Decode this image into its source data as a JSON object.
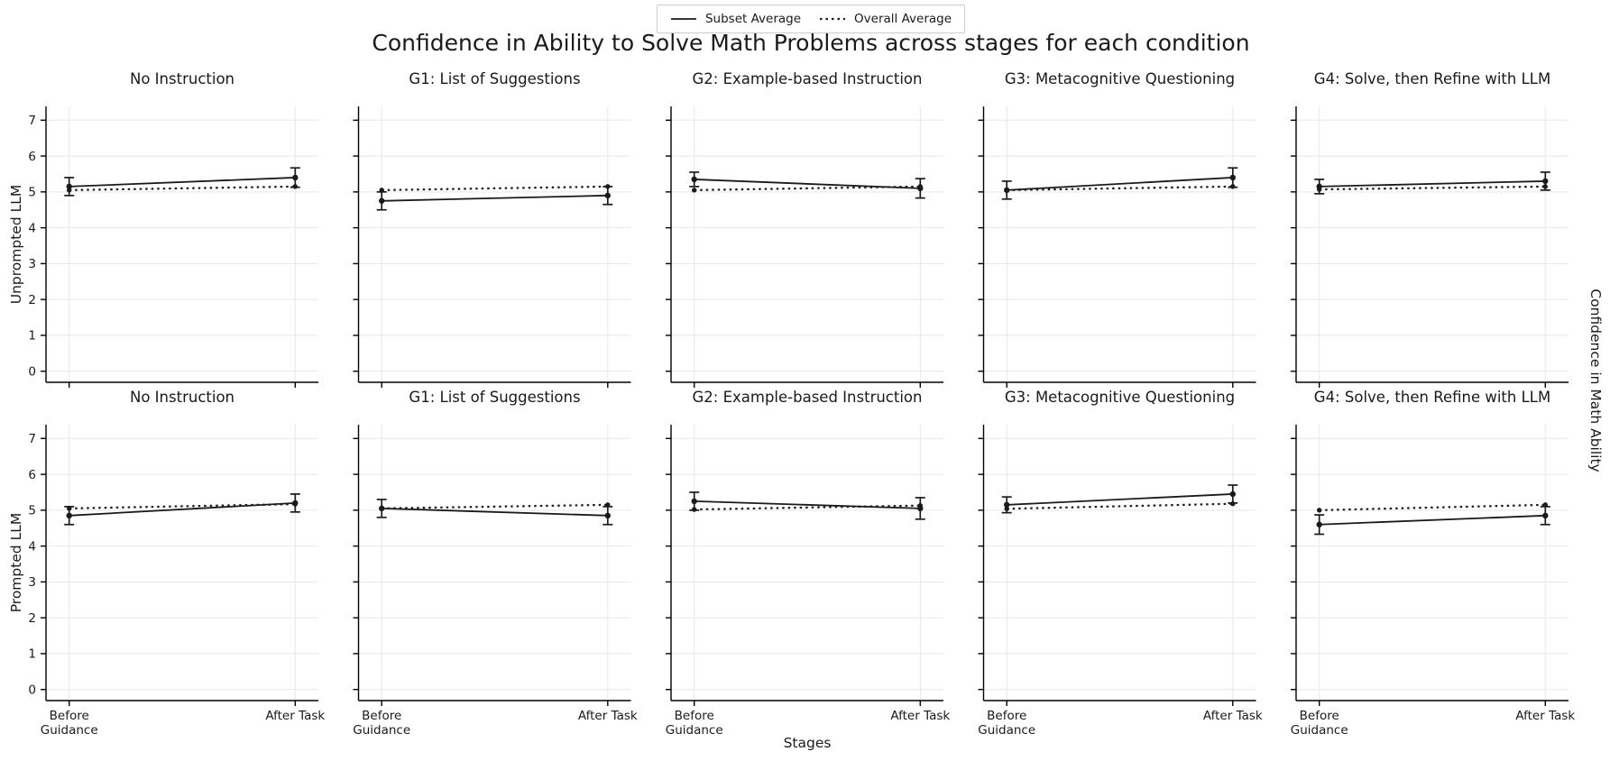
{
  "colors": {
    "line": "#1a1a1a",
    "grid": "#e7e7e7",
    "spine": "#000000",
    "legend_border": "#cccccc",
    "background": "#ffffff"
  },
  "chart_data": {
    "type": "line",
    "title": "Confidence in Ability to Solve Math Problems across stages for each condition",
    "xlabel": "Stages",
    "right_ylabel": "Confidence in Math Ability",
    "x_categories": [
      "Before\nGuidance",
      "After Task"
    ],
    "yticks": [
      0,
      1,
      2,
      3,
      4,
      5,
      6,
      7
    ],
    "ylim": [
      -0.33,
      7.38
    ],
    "grid": true,
    "legend": {
      "position": "top-center",
      "entries": [
        {
          "label": "Subset Average",
          "linestyle": "solid"
        },
        {
          "label": "Overall Average",
          "linestyle": "dotted"
        }
      ]
    },
    "rows": [
      {
        "row_label": "Unprompted LLM",
        "panels": [
          {
            "title": "No Instruction",
            "series": [
              {
                "name": "Subset Average",
                "style": "solid",
                "values": [
                  5.15,
                  5.4
                ],
                "errors": [
                  0.25,
                  0.27
                ]
              },
              {
                "name": "Overall Average",
                "style": "dotted",
                "values": [
                  5.05,
                  5.15
                ]
              }
            ]
          },
          {
            "title": "G1: List of Suggestions",
            "series": [
              {
                "name": "Subset Average",
                "style": "solid",
                "values": [
                  4.75,
                  4.9
                ],
                "errors": [
                  0.25,
                  0.25
                ]
              },
              {
                "name": "Overall Average",
                "style": "dotted",
                "values": [
                  5.05,
                  5.15
                ]
              }
            ]
          },
          {
            "title": "G2: Example-based Instruction",
            "series": [
              {
                "name": "Subset Average",
                "style": "solid",
                "values": [
                  5.35,
                  5.1
                ],
                "errors": [
                  0.2,
                  0.27
                ]
              },
              {
                "name": "Overall Average",
                "style": "dotted",
                "values": [
                  5.05,
                  5.15
                ]
              }
            ]
          },
          {
            "title": "G3: Metacognitive Questioning",
            "series": [
              {
                "name": "Subset Average",
                "style": "solid",
                "values": [
                  5.05,
                  5.4
                ],
                "errors": [
                  0.25,
                  0.27
                ]
              },
              {
                "name": "Overall Average",
                "style": "dotted",
                "values": [
                  5.05,
                  5.15
                ]
              }
            ]
          },
          {
            "title": "G4: Solve, then Refine with LLM",
            "series": [
              {
                "name": "Subset Average",
                "style": "solid",
                "values": [
                  5.15,
                  5.3
                ],
                "errors": [
                  0.2,
                  0.25
                ]
              },
              {
                "name": "Overall Average",
                "style": "dotted",
                "values": [
                  5.07,
                  5.15
                ]
              }
            ]
          }
        ]
      },
      {
        "row_label": "Prompted LLM",
        "panels": [
          {
            "title": "No Instruction",
            "series": [
              {
                "name": "Subset Average",
                "style": "solid",
                "values": [
                  4.85,
                  5.2
                ],
                "errors": [
                  0.25,
                  0.25
                ]
              },
              {
                "name": "Overall Average",
                "style": "dotted",
                "values": [
                  5.05,
                  5.17
                ]
              }
            ]
          },
          {
            "title": "G1: List of Suggestions",
            "series": [
              {
                "name": "Subset Average",
                "style": "solid",
                "values": [
                  5.05,
                  4.85
                ],
                "errors": [
                  0.25,
                  0.25
                ]
              },
              {
                "name": "Overall Average",
                "style": "dotted",
                "values": [
                  5.05,
                  5.15
                ]
              }
            ]
          },
          {
            "title": "G2: Example-based Instruction",
            "series": [
              {
                "name": "Subset Average",
                "style": "solid",
                "values": [
                  5.25,
                  5.05
                ],
                "errors": [
                  0.25,
                  0.3
                ]
              },
              {
                "name": "Overall Average",
                "style": "dotted",
                "values": [
                  5.02,
                  5.13
                ]
              }
            ]
          },
          {
            "title": "G3: Metacognitive Questioning",
            "series": [
              {
                "name": "Subset Average",
                "style": "solid",
                "values": [
                  5.15,
                  5.45
                ],
                "errors": [
                  0.22,
                  0.25
                ]
              },
              {
                "name": "Overall Average",
                "style": "dotted",
                "values": [
                  5.04,
                  5.18
                ]
              }
            ]
          },
          {
            "title": "G4: Solve, then Refine with LLM",
            "series": [
              {
                "name": "Subset Average",
                "style": "solid",
                "values": [
                  4.6,
                  4.85
                ],
                "errors": [
                  0.27,
                  0.25
                ]
              },
              {
                "name": "Overall Average",
                "style": "dotted",
                "values": [
                  5.0,
                  5.15
                ]
              }
            ]
          }
        ]
      }
    ]
  }
}
